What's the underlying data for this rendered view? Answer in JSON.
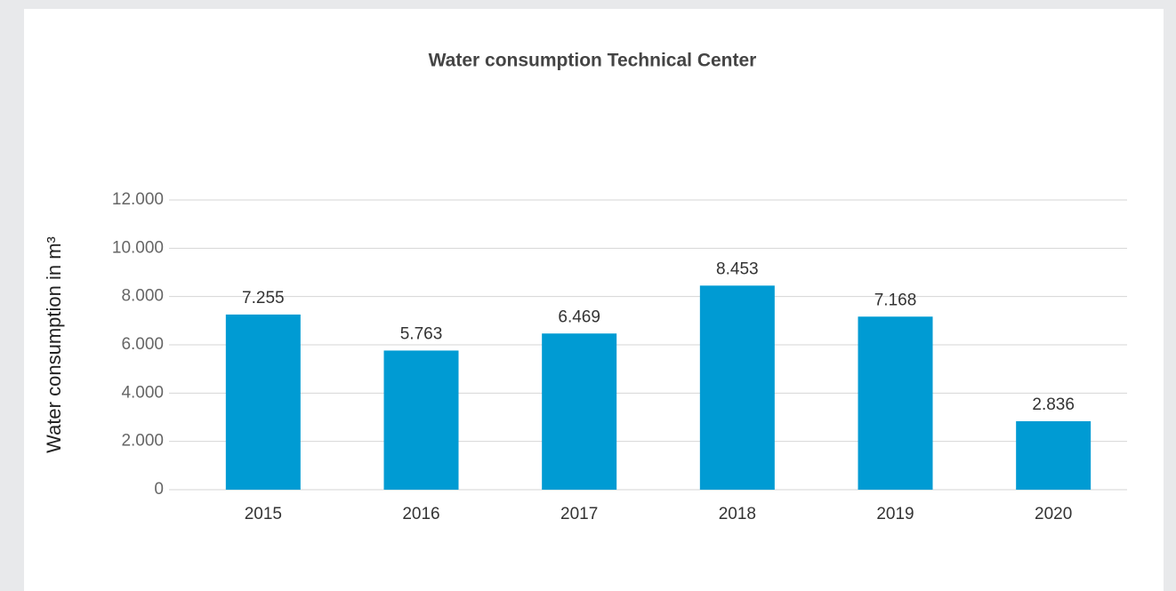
{
  "chart_data": {
    "type": "bar",
    "title": "Water consumption Technical Center",
    "y_label": "Water consumption in m³",
    "categories": [
      "2015",
      "2016",
      "2017",
      "2018",
      "2019",
      "2020"
    ],
    "values": [
      7255,
      5763,
      6469,
      8453,
      7168,
      2836
    ],
    "value_labels": [
      "7.255",
      "5.763",
      "6.469",
      "8.453",
      "7.168",
      "2.836"
    ],
    "color": "#009bd3",
    "ylim": [
      0,
      12000
    ],
    "yticks": [
      0,
      {
        "value": 2000,
        "label": "2.000"
      },
      {
        "value": 4000,
        "label": "4.000"
      },
      {
        "value": 6000,
        "label": "6.000"
      },
      {
        "value": 8000,
        "label": "8.000"
      },
      {
        "value": 10000,
        "label": "10.000"
      },
      {
        "value": 12000,
        "label": "12.000"
      }
    ],
    "grid": true
  }
}
